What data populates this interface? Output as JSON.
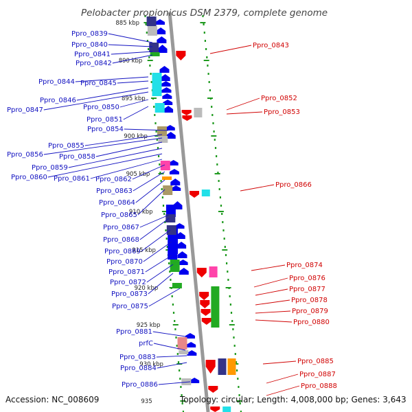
{
  "title": "Pelobacter propionicus DSM 2379, complete genome",
  "footer": {
    "accession": "Accession: NC_008609",
    "topology": "Topology: circular; Length: 4,008,000 bp; Genes: 3,643"
  },
  "colors": {
    "backbone": "#9a9a9a",
    "dots": "#1f9a1f",
    "forward_strand": "#0000ee",
    "reverse_strand": "#ee0000",
    "left_label": "#1010c0",
    "right_label": "#d00000",
    "cog_cyan": "#22e0e8",
    "cog_green": "#22aa22",
    "cog_magenta": "#ff44aa",
    "cog_orange": "#ff9900",
    "cog_navy": "#333388",
    "cog_gray": "#bbbbbb",
    "cog_olive": "#aa9966",
    "cog_salmon": "#e88888"
  },
  "scale_marks": [
    "885 kbp",
    "890 kbp",
    "895 kbp",
    "900 kbp",
    "905 kbp",
    "910 kbp",
    "915 kbp",
    "920 kbp",
    "925 kbp",
    "930 kbp",
    "935"
  ],
  "left_labels": [
    "Ppro_0839",
    "Ppro_0840",
    "Ppro_0841",
    "Ppro_0842",
    "Ppro_0844",
    "Ppro_0845",
    "Ppro_0846",
    "Ppro_0847",
    "Ppro_0850",
    "Ppro_0851",
    "Ppro_0854",
    "Ppro_0855",
    "Ppro_0856",
    "Ppro_0858",
    "Ppro_0859",
    "Ppro_0860",
    "Ppro_0861",
    "Ppro_0862",
    "Ppro_0863",
    "Ppro_0864",
    "Ppro_0865",
    "Ppro_0867",
    "Ppro_0868",
    "Ppro_0869",
    "Ppro_0870",
    "Ppro_0871",
    "Ppro_0872",
    "Ppro_0873",
    "Ppro_0875",
    "Ppro_0881",
    "prfC",
    "Ppro_0883",
    "Ppro_0884",
    "Ppro_0886"
  ],
  "right_labels": [
    "Ppro_0843",
    "Ppro_0852",
    "Ppro_0853",
    "Ppro_0866",
    "Ppro_0874",
    "Ppro_0876",
    "Ppro_0877",
    "Ppro_0878",
    "Ppro_0879",
    "Ppro_0880",
    "Ppro_0885",
    "Ppro_0887",
    "Ppro_0888"
  ]
}
